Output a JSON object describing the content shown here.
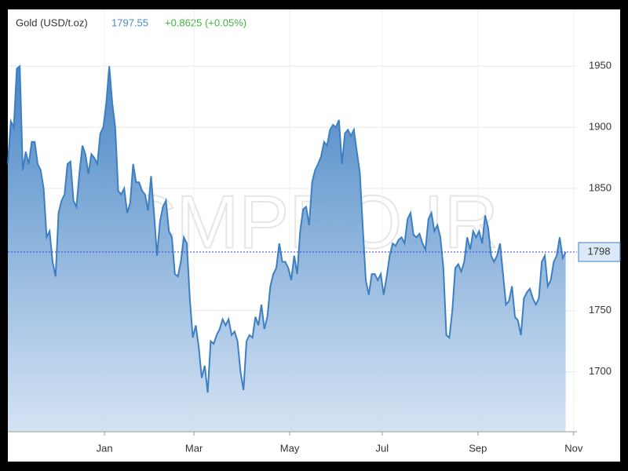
{
  "chart_data": {
    "type": "area",
    "title": "Gold (USD/t.oz)",
    "last_price": 1797.55,
    "change_label": "+0.8625 (+0.05%)",
    "watermark": "CMPRO.IR",
    "marker": 1798,
    "color": "#3d7fc1",
    "grid": true,
    "values": [
      1870,
      1905,
      1900,
      1948,
      1950,
      1865,
      1880,
      1870,
      1888,
      1888,
      1870,
      1865,
      1850,
      1810,
      1815,
      1790,
      1778,
      1830,
      1840,
      1845,
      1870,
      1872,
      1840,
      1835,
      1863,
      1885,
      1878,
      1862,
      1878,
      1875,
      1870,
      1895,
      1900,
      1920,
      1950,
      1920,
      1900,
      1848,
      1845,
      1850,
      1830,
      1838,
      1870,
      1855,
      1855,
      1848,
      1845,
      1832,
      1860,
      1830,
      1795,
      1823,
      1835,
      1840,
      1815,
      1810,
      1780,
      1778,
      1790,
      1810,
      1805,
      1760,
      1728,
      1738,
      1720,
      1695,
      1705,
      1683,
      1725,
      1723,
      1730,
      1735,
      1743,
      1738,
      1743,
      1730,
      1733,
      1725,
      1700,
      1685,
      1725,
      1730,
      1728,
      1745,
      1738,
      1755,
      1735,
      1745,
      1770,
      1780,
      1785,
      1805,
      1790,
      1790,
      1785,
      1775,
      1795,
      1780,
      1815,
      1833,
      1835,
      1820,
      1855,
      1865,
      1870,
      1876,
      1888,
      1885,
      1898,
      1902,
      1900,
      1906,
      1870,
      1895,
      1898,
      1893,
      1898,
      1880,
      1863,
      1818,
      1775,
      1763,
      1780,
      1780,
      1775,
      1780,
      1763,
      1778,
      1795,
      1805,
      1803,
      1808,
      1810,
      1805,
      1825,
      1830,
      1812,
      1810,
      1813,
      1805,
      1800,
      1825,
      1830,
      1815,
      1820,
      1810,
      1785,
      1730,
      1728,
      1750,
      1785,
      1788,
      1782,
      1790,
      1810,
      1800,
      1815,
      1810,
      1815,
      1805,
      1828,
      1818,
      1795,
      1790,
      1795,
      1805,
      1780,
      1755,
      1758,
      1770,
      1745,
      1742,
      1730,
      1760,
      1765,
      1768,
      1760,
      1755,
      1760,
      1790,
      1795,
      1770,
      1775,
      1790,
      1795,
      1810,
      1793,
      1798
    ],
    "ylim": [
      1651,
      1972
    ],
    "yticks": [
      1700,
      1750,
      1850,
      1900,
      1950
    ],
    "xlim": [
      0,
      190.8
    ],
    "xticks": [
      {
        "value": 32.4,
        "label": "Jan"
      },
      {
        "value": 62.4,
        "label": "Mar"
      },
      {
        "value": 94.5,
        "label": "May"
      },
      {
        "value": 125.5,
        "label": "Jul"
      },
      {
        "value": 157.6,
        "label": "Sep"
      },
      {
        "value": 189.7,
        "label": "Nov"
      }
    ]
  }
}
